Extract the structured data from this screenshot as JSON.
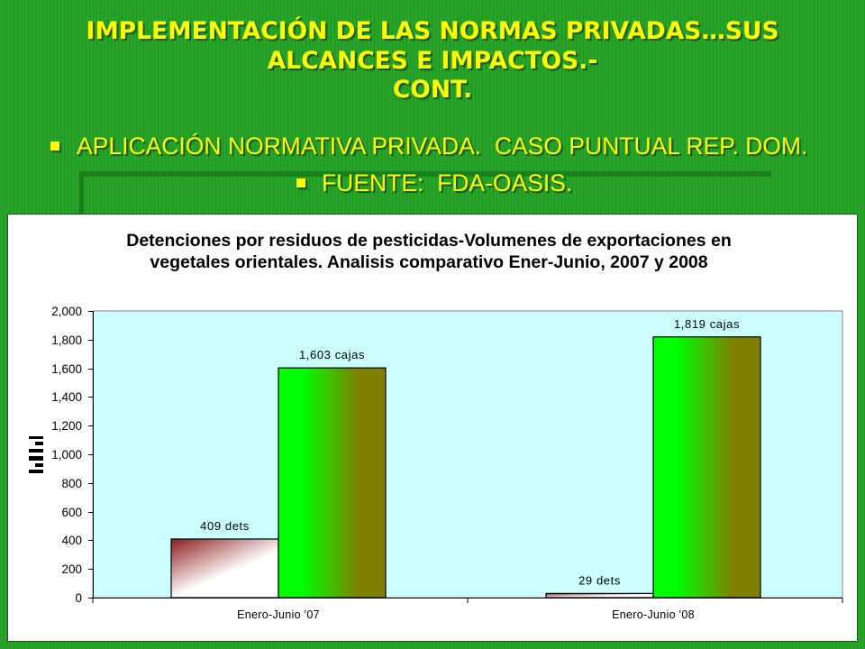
{
  "slide": {
    "title_lines": [
      "IMPLEMENTACIÓN DE LAS NORMAS PRIVADAS…SUS",
      "ALCANCES E IMPACTOS.-",
      "CONT."
    ],
    "bullet_icon": "square-bullet-icon",
    "bullets": [
      {
        "text": "APLICACIÓN NORMATIVA PRIVADA.  CASO PUNTUAL REP. DOM."
      },
      {
        "text": "FUENTE:  FDA-OASIS."
      }
    ]
  },
  "colors": {
    "slide_background": "#26a026",
    "title_text": "#ffff00",
    "bullet_text": "#ffff00",
    "chart_background": "#ffffff",
    "plot_background": "#ccffff",
    "series_1_gradient": [
      "#8b1c1c",
      "#ffffff"
    ],
    "series_2_gradient": [
      "#00ff00",
      "#808000"
    ]
  },
  "chart_data": {
    "type": "bar",
    "title_lines": [
      "Detenciones por residuos de pesticidas-Volumenes de exportaciones en",
      "vegetales orientales. Analisis comparativo Ener-Junio, 2007 y 2008"
    ],
    "categories": [
      "Enero-Junio '07",
      "Enero-Junio '08"
    ],
    "series": [
      {
        "values": [
          409,
          29
        ],
        "data_labels": [
          "409 dets",
          "29 dets"
        ]
      },
      {
        "values": [
          1603,
          1819
        ],
        "data_labels": [
          "1,603 cajas",
          "1,819 cajas"
        ]
      }
    ],
    "ylim": [
      0,
      2000
    ],
    "y_ticks": [
      0,
      200,
      400,
      600,
      800,
      1000,
      1200,
      1400,
      1600,
      1800,
      2000
    ],
    "y_tick_labels": [
      "0",
      "200",
      "400",
      "600",
      "800",
      "1,000",
      "1,200",
      "1,400",
      "1,600",
      "1,800",
      "2,000"
    ],
    "y_axis_icon": "bar-chart-icon",
    "grid": false,
    "legend": "none"
  }
}
